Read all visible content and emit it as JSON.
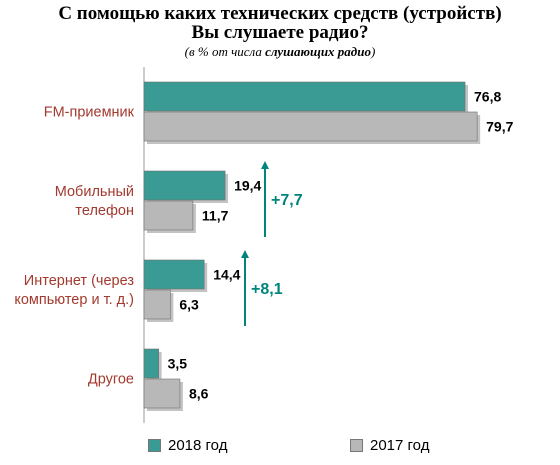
{
  "chart_data": {
    "type": "bar",
    "orientation": "horizontal",
    "title_line1": "С помощью каких технических средств (устройств)",
    "title_line2": "Вы слушаете радио?",
    "subtitle_prefix": "(в % от числа ",
    "subtitle_emph": "слушающих радио",
    "subtitle_suffix": ")",
    "categories": [
      "FM-приемник",
      "Мобильный телефон",
      "Интернет (через компьютер и т. д.)",
      "Другое"
    ],
    "category_lines": [
      [
        "FM-приемник"
      ],
      [
        "Мобильный",
        "телефон"
      ],
      [
        "Интернет (через",
        "компьютер и т. д.)"
      ],
      [
        "Другое"
      ]
    ],
    "series": [
      {
        "name": "2018 год",
        "color": "#3a9b94",
        "values": [
          76.8,
          19.4,
          14.4,
          3.5
        ],
        "labels": [
          "76,8",
          "19,4",
          "14,4",
          "3,5"
        ]
      },
      {
        "name": "2017 год",
        "color": "#b8b8b8",
        "values": [
          79.7,
          11.7,
          6.3,
          8.6
        ],
        "labels": [
          "79,7",
          "11,7",
          "6,3",
          "8,6"
        ]
      }
    ],
    "annotations": [
      {
        "category_index": 1,
        "text": "+7,7"
      },
      {
        "category_index": 2,
        "text": "+8,1"
      }
    ],
    "category_label_color": "#a33a2f",
    "annotation_color": "#00857c",
    "xlim": [
      0,
      100
    ],
    "grid": false,
    "legend_position": "bottom"
  }
}
